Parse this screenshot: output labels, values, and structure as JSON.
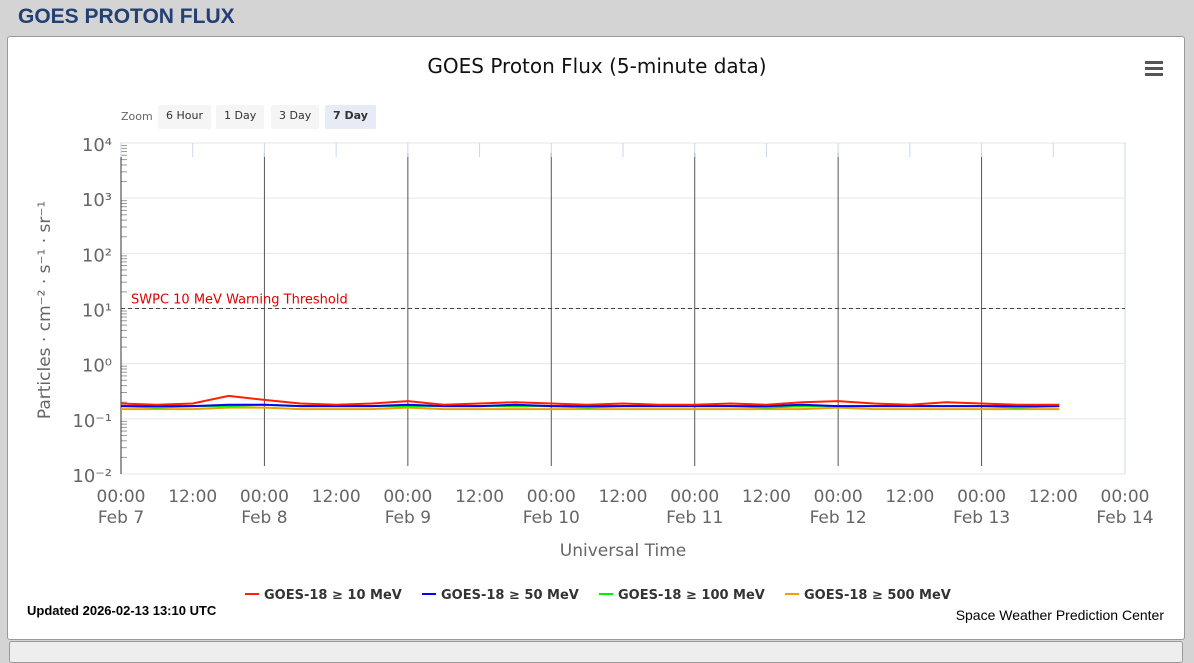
{
  "header": {
    "title": "GOES PROTON FLUX"
  },
  "zoom": {
    "label": "Zoom",
    "buttons": [
      "6 Hour",
      "1 Day",
      "3 Day",
      "7 Day"
    ],
    "selected": "7 Day"
  },
  "footer": {
    "updated": "Updated 2026-02-13 13:10 UTC",
    "credit": "Space Weather Prediction Center"
  },
  "chart_data": {
    "type": "line",
    "title": "GOES Proton Flux (5-minute data)",
    "xlabel": "Universal Time",
    "ylabel": "Particles · cm⁻² · s⁻¹ · sr⁻¹",
    "yscale": "log",
    "ylim": [
      0.01,
      10000
    ],
    "ytick_labels": [
      "10⁻²",
      "10⁻¹",
      "10⁰",
      "10¹",
      "10²",
      "10³",
      "10⁴"
    ],
    "xlim": [
      "2026-02-07 00:00",
      "2026-02-14 00:00"
    ],
    "xtick_labels": [
      [
        "00:00",
        "Feb 7"
      ],
      [
        "12:00",
        ""
      ],
      [
        "00:00",
        "Feb 8"
      ],
      [
        "12:00",
        ""
      ],
      [
        "00:00",
        "Feb 9"
      ],
      [
        "12:00",
        ""
      ],
      [
        "00:00",
        "Feb 10"
      ],
      [
        "12:00",
        ""
      ],
      [
        "00:00",
        "Feb 11"
      ],
      [
        "12:00",
        ""
      ],
      [
        "00:00",
        "Feb 12"
      ],
      [
        "12:00",
        ""
      ],
      [
        "00:00",
        "Feb 13"
      ],
      [
        "12:00",
        ""
      ],
      [
        "00:00",
        "Feb 14"
      ]
    ],
    "threshold": {
      "label": "SWPC 10 MeV Warning Threshold",
      "value": 10,
      "color": "#e00000"
    },
    "legend_position": "bottom",
    "x": [
      "2026-02-07 00:00",
      "2026-02-07 06:00",
      "2026-02-07 12:00",
      "2026-02-07 18:00",
      "2026-02-08 00:00",
      "2026-02-08 06:00",
      "2026-02-08 12:00",
      "2026-02-08 18:00",
      "2026-02-09 00:00",
      "2026-02-09 06:00",
      "2026-02-09 12:00",
      "2026-02-09 18:00",
      "2026-02-10 00:00",
      "2026-02-10 06:00",
      "2026-02-10 12:00",
      "2026-02-10 18:00",
      "2026-02-11 00:00",
      "2026-02-11 06:00",
      "2026-02-11 12:00",
      "2026-02-11 18:00",
      "2026-02-12 00:00",
      "2026-02-12 06:00",
      "2026-02-12 12:00",
      "2026-02-12 18:00",
      "2026-02-13 00:00",
      "2026-02-13 06:00",
      "2026-02-13 13:00"
    ],
    "series": [
      {
        "name": "GOES-18 ≥ 10 MeV",
        "color": "#ff2000",
        "values": [
          0.19,
          0.18,
          0.19,
          0.26,
          0.22,
          0.19,
          0.18,
          0.19,
          0.21,
          0.18,
          0.19,
          0.2,
          0.19,
          0.18,
          0.19,
          0.18,
          0.18,
          0.19,
          0.18,
          0.2,
          0.21,
          0.19,
          0.18,
          0.2,
          0.19,
          0.18,
          0.18
        ]
      },
      {
        "name": "GOES-18 ≥ 50 MeV",
        "color": "#0000ff",
        "values": [
          0.17,
          0.17,
          0.17,
          0.18,
          0.18,
          0.17,
          0.17,
          0.17,
          0.18,
          0.17,
          0.17,
          0.18,
          0.17,
          0.17,
          0.17,
          0.17,
          0.17,
          0.17,
          0.17,
          0.18,
          0.17,
          0.17,
          0.17,
          0.17,
          0.17,
          0.17,
          0.17
        ]
      },
      {
        "name": "GOES-18 ≥ 100 MeV",
        "color": "#00ee00",
        "values": [
          0.17,
          0.16,
          0.17,
          0.17,
          0.18,
          0.17,
          0.17,
          0.17,
          0.17,
          0.17,
          0.17,
          0.17,
          0.17,
          0.16,
          0.17,
          0.17,
          0.17,
          0.17,
          0.16,
          0.17,
          0.17,
          0.17,
          0.17,
          0.17,
          0.17,
          0.16,
          0.17
        ]
      },
      {
        "name": "GOES-18 ≥ 500 MeV",
        "color": "#f0a000",
        "values": [
          0.15,
          0.15,
          0.15,
          0.16,
          0.16,
          0.15,
          0.15,
          0.15,
          0.16,
          0.15,
          0.15,
          0.15,
          0.15,
          0.15,
          0.15,
          0.15,
          0.15,
          0.15,
          0.15,
          0.15,
          0.16,
          0.15,
          0.15,
          0.15,
          0.15,
          0.15,
          0.15
        ]
      }
    ]
  }
}
